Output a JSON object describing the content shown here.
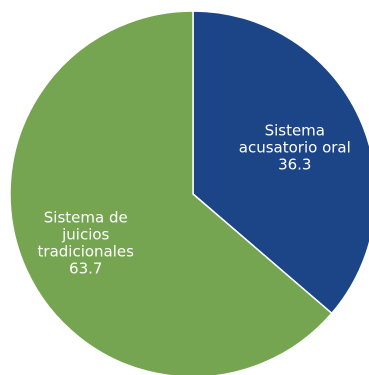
{
  "chart_data": {
    "type": "pie",
    "title": "",
    "start_angle_deg": 0,
    "direction": "clockwise",
    "slices": [
      {
        "label_lines": [
          "Sistema",
          "acusatorio oral"
        ],
        "value": 36.3,
        "value_text": "36.3",
        "color": "#1c4587"
      },
      {
        "label_lines": [
          "Sistema de",
          "juicios",
          "tradicionales"
        ],
        "value": 63.7,
        "value_text": "63.7",
        "color": "#76a551"
      }
    ]
  }
}
